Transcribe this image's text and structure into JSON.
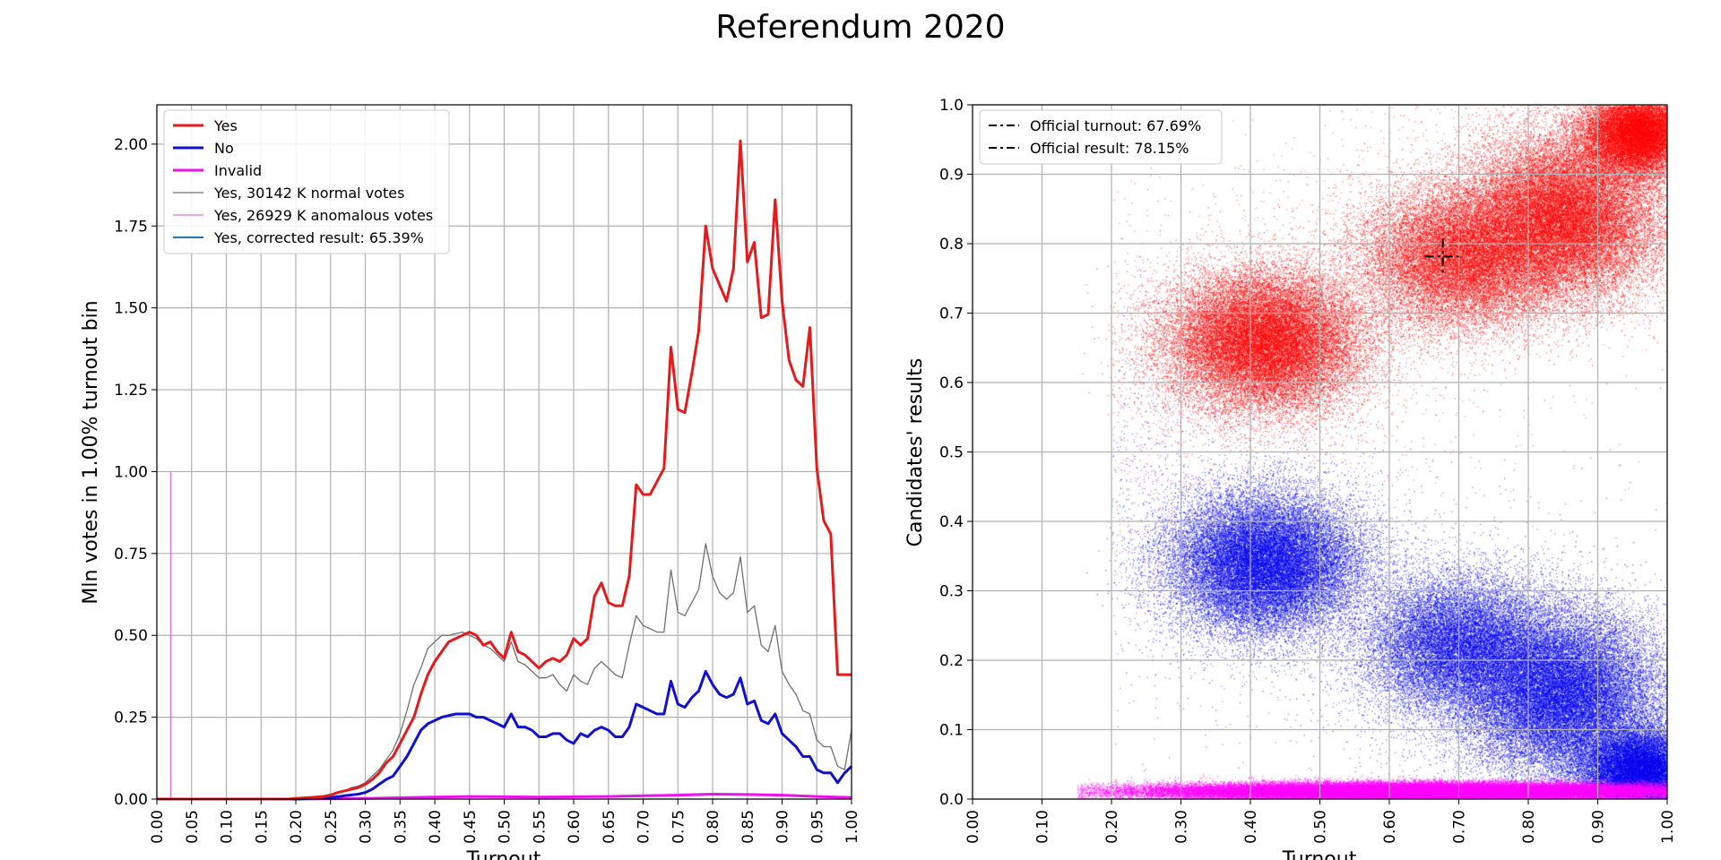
{
  "title": "Referendum 2020",
  "chart_data": [
    {
      "type": "line",
      "title": "",
      "xlabel": "Turnout",
      "ylabel": "Mln votes in 1.00% turnout bin",
      "xlim": [
        0,
        1
      ],
      "ylim": [
        0,
        2.12
      ],
      "xticks": [
        "0.00",
        "0.05",
        "0.10",
        "0.15",
        "0.20",
        "0.25",
        "0.30",
        "0.35",
        "0.40",
        "0.45",
        "0.50",
        "0.55",
        "0.60",
        "0.65",
        "0.70",
        "0.75",
        "0.80",
        "0.85",
        "0.90",
        "0.95",
        "1.00"
      ],
      "yticks": [
        "0.00",
        "0.25",
        "0.50",
        "0.75",
        "1.00",
        "1.25",
        "1.50",
        "1.75",
        "2.00"
      ],
      "grid": true,
      "legend_position": "top-left",
      "series": [
        {
          "name": "Yes",
          "color": "#e41a1c",
          "x": [
            0.0,
            0.02,
            0.05,
            0.1,
            0.15,
            0.19,
            0.2,
            0.22,
            0.24,
            0.25,
            0.26,
            0.27,
            0.28,
            0.29,
            0.3,
            0.31,
            0.32,
            0.33,
            0.34,
            0.35,
            0.36,
            0.37,
            0.38,
            0.39,
            0.4,
            0.41,
            0.42,
            0.43,
            0.44,
            0.45,
            0.46,
            0.47,
            0.48,
            0.49,
            0.5,
            0.51,
            0.52,
            0.53,
            0.54,
            0.55,
            0.56,
            0.57,
            0.58,
            0.59,
            0.6,
            0.61,
            0.62,
            0.63,
            0.64,
            0.65,
            0.66,
            0.67,
            0.68,
            0.69,
            0.7,
            0.71,
            0.72,
            0.73,
            0.74,
            0.75,
            0.76,
            0.77,
            0.78,
            0.79,
            0.8,
            0.81,
            0.82,
            0.83,
            0.84,
            0.85,
            0.86,
            0.87,
            0.88,
            0.89,
            0.9,
            0.91,
            0.92,
            0.93,
            0.94,
            0.95,
            0.96,
            0.97,
            0.98,
            0.99,
            1.0
          ],
          "y": [
            0,
            0,
            0,
            0,
            0,
            0,
            0.002,
            0.005,
            0.008,
            0.012,
            0.02,
            0.025,
            0.03,
            0.035,
            0.045,
            0.06,
            0.08,
            0.11,
            0.13,
            0.17,
            0.21,
            0.25,
            0.32,
            0.38,
            0.42,
            0.45,
            0.48,
            0.49,
            0.5,
            0.51,
            0.5,
            0.47,
            0.48,
            0.45,
            0.43,
            0.51,
            0.45,
            0.44,
            0.42,
            0.4,
            0.42,
            0.43,
            0.42,
            0.44,
            0.49,
            0.47,
            0.49,
            0.62,
            0.66,
            0.6,
            0.59,
            0.59,
            0.68,
            0.96,
            0.93,
            0.93,
            0.97,
            1.01,
            1.38,
            1.19,
            1.18,
            1.3,
            1.43,
            1.75,
            1.62,
            1.57,
            1.52,
            1.62,
            2.01,
            1.64,
            1.7,
            1.47,
            1.48,
            1.83,
            1.52,
            1.34,
            1.28,
            1.26,
            1.44,
            1.01,
            0.85,
            0.81,
            0.38,
            0.38,
            0.38
          ]
        },
        {
          "name": "No",
          "color": "#1010d0",
          "x": [
            0.0,
            0.05,
            0.1,
            0.15,
            0.2,
            0.22,
            0.25,
            0.27,
            0.29,
            0.3,
            0.31,
            0.32,
            0.33,
            0.34,
            0.35,
            0.36,
            0.37,
            0.38,
            0.39,
            0.4,
            0.41,
            0.42,
            0.43,
            0.44,
            0.45,
            0.46,
            0.47,
            0.48,
            0.49,
            0.5,
            0.51,
            0.52,
            0.53,
            0.54,
            0.55,
            0.56,
            0.57,
            0.58,
            0.59,
            0.6,
            0.61,
            0.62,
            0.63,
            0.64,
            0.65,
            0.66,
            0.67,
            0.68,
            0.69,
            0.7,
            0.71,
            0.72,
            0.73,
            0.74,
            0.75,
            0.76,
            0.77,
            0.78,
            0.79,
            0.8,
            0.81,
            0.82,
            0.83,
            0.84,
            0.85,
            0.86,
            0.87,
            0.88,
            0.89,
            0.9,
            0.91,
            0.92,
            0.93,
            0.94,
            0.95,
            0.96,
            0.97,
            0.98,
            0.99,
            1.0
          ],
          "y": [
            0,
            0,
            0,
            0,
            0,
            0.002,
            0.005,
            0.01,
            0.015,
            0.02,
            0.03,
            0.045,
            0.06,
            0.07,
            0.1,
            0.13,
            0.17,
            0.21,
            0.23,
            0.24,
            0.25,
            0.255,
            0.26,
            0.26,
            0.26,
            0.25,
            0.25,
            0.24,
            0.23,
            0.22,
            0.26,
            0.22,
            0.22,
            0.21,
            0.19,
            0.19,
            0.2,
            0.2,
            0.18,
            0.17,
            0.2,
            0.19,
            0.21,
            0.22,
            0.21,
            0.19,
            0.19,
            0.22,
            0.29,
            0.28,
            0.27,
            0.26,
            0.26,
            0.36,
            0.29,
            0.28,
            0.31,
            0.33,
            0.39,
            0.35,
            0.32,
            0.31,
            0.32,
            0.37,
            0.29,
            0.3,
            0.24,
            0.23,
            0.26,
            0.2,
            0.18,
            0.16,
            0.13,
            0.13,
            0.09,
            0.08,
            0.08,
            0.05,
            0.08,
            0.1
          ]
        },
        {
          "name": "Invalid",
          "color": "#ee10ee",
          "x": [
            0.0,
            0.2,
            0.25,
            0.3,
            0.35,
            0.4,
            0.45,
            0.5,
            0.55,
            0.6,
            0.65,
            0.7,
            0.75,
            0.8,
            0.85,
            0.9,
            0.95,
            1.0
          ],
          "y": [
            0,
            0,
            0.001,
            0.002,
            0.004,
            0.006,
            0.008,
            0.007,
            0.006,
            0.007,
            0.008,
            0.01,
            0.012,
            0.015,
            0.014,
            0.012,
            0.008,
            0.005
          ]
        },
        {
          "name": "Yes, 30142 K normal votes",
          "color": "#707070",
          "x": [
            0.0,
            0.05,
            0.1,
            0.15,
            0.2,
            0.22,
            0.24,
            0.25,
            0.26,
            0.27,
            0.28,
            0.29,
            0.3,
            0.31,
            0.32,
            0.33,
            0.34,
            0.35,
            0.36,
            0.37,
            0.38,
            0.39,
            0.4,
            0.41,
            0.42,
            0.43,
            0.44,
            0.45,
            0.46,
            0.47,
            0.48,
            0.49,
            0.5,
            0.51,
            0.52,
            0.53,
            0.54,
            0.55,
            0.56,
            0.57,
            0.58,
            0.59,
            0.6,
            0.61,
            0.62,
            0.63,
            0.64,
            0.65,
            0.66,
            0.67,
            0.68,
            0.69,
            0.7,
            0.71,
            0.72,
            0.73,
            0.74,
            0.75,
            0.76,
            0.77,
            0.78,
            0.79,
            0.8,
            0.81,
            0.82,
            0.83,
            0.84,
            0.85,
            0.86,
            0.87,
            0.88,
            0.89,
            0.9,
            0.91,
            0.92,
            0.93,
            0.94,
            0.95,
            0.96,
            0.97,
            0.98,
            0.99,
            1.0
          ],
          "y": [
            0,
            0,
            0,
            0,
            0.002,
            0.005,
            0.01,
            0.015,
            0.02,
            0.025,
            0.035,
            0.04,
            0.05,
            0.07,
            0.09,
            0.12,
            0.15,
            0.2,
            0.27,
            0.35,
            0.4,
            0.46,
            0.48,
            0.5,
            0.5,
            0.505,
            0.51,
            0.5,
            0.49,
            0.47,
            0.46,
            0.44,
            0.42,
            0.48,
            0.42,
            0.41,
            0.39,
            0.37,
            0.37,
            0.38,
            0.35,
            0.33,
            0.38,
            0.36,
            0.35,
            0.4,
            0.42,
            0.4,
            0.38,
            0.37,
            0.47,
            0.56,
            0.53,
            0.52,
            0.51,
            0.51,
            0.7,
            0.57,
            0.56,
            0.6,
            0.64,
            0.78,
            0.68,
            0.63,
            0.61,
            0.63,
            0.74,
            0.57,
            0.59,
            0.47,
            0.45,
            0.53,
            0.39,
            0.35,
            0.32,
            0.27,
            0.26,
            0.18,
            0.16,
            0.16,
            0.1,
            0.09,
            0.21
          ]
        },
        {
          "name": "Yes, 26929 K anomalous votes",
          "color": "#e070e0",
          "x": [
            0.02,
            0.02
          ],
          "y": [
            0,
            1.0
          ]
        },
        {
          "name": "Yes, corrected result: 65.39%",
          "color": "#1f77b4",
          "x": [],
          "y": []
        }
      ]
    },
    {
      "type": "scatter",
      "title": "",
      "xlabel": "Turnout",
      "ylabel": "Candidates' results",
      "xlim": [
        0,
        1
      ],
      "ylim": [
        0,
        1
      ],
      "xticks": [
        "0.00",
        "0.10",
        "0.20",
        "0.30",
        "0.40",
        "0.50",
        "0.60",
        "0.70",
        "0.80",
        "0.90",
        "1.00"
      ],
      "yticks": [
        "0.0",
        "0.1",
        "0.2",
        "0.3",
        "0.4",
        "0.5",
        "0.6",
        "0.7",
        "0.8",
        "0.9",
        "1.0"
      ],
      "grid": true,
      "legend_position": "top-left",
      "series": [
        {
          "name": "Yes",
          "color": "#ff0000",
          "clusters": [
            {
              "x": 0.42,
              "y": 0.66,
              "sx": 0.07,
              "sy": 0.05,
              "weight": 0.3
            },
            {
              "x": 0.7,
              "y": 0.78,
              "sx": 0.07,
              "sy": 0.05,
              "weight": 0.2
            },
            {
              "x": 0.85,
              "y": 0.84,
              "sx": 0.07,
              "sy": 0.06,
              "weight": 0.3
            },
            {
              "x": 0.96,
              "y": 0.96,
              "sx": 0.04,
              "sy": 0.03,
              "weight": 0.2
            }
          ]
        },
        {
          "name": "No",
          "color": "#0000ee",
          "clusters": [
            {
              "x": 0.42,
              "y": 0.34,
              "sx": 0.07,
              "sy": 0.05,
              "weight": 0.3
            },
            {
              "x": 0.7,
              "y": 0.22,
              "sx": 0.07,
              "sy": 0.05,
              "weight": 0.2
            },
            {
              "x": 0.85,
              "y": 0.15,
              "sx": 0.07,
              "sy": 0.06,
              "weight": 0.3
            },
            {
              "x": 0.96,
              "y": 0.04,
              "sx": 0.04,
              "sy": 0.03,
              "weight": 0.2
            }
          ]
        },
        {
          "name": "Invalid",
          "color": "#ff00ff",
          "clusters": [
            {
              "x": 0.65,
              "y": 0.012,
              "sx": 0.2,
              "sy": 0.006,
              "weight": 1.0
            }
          ]
        }
      ],
      "markers": [
        {
          "name": "Official turnout: 67.69%",
          "x": 0.6769,
          "y": 0.7815
        }
      ],
      "legend": [
        "Official turnout: 67.69%",
        "Official result: 78.15%"
      ]
    }
  ]
}
